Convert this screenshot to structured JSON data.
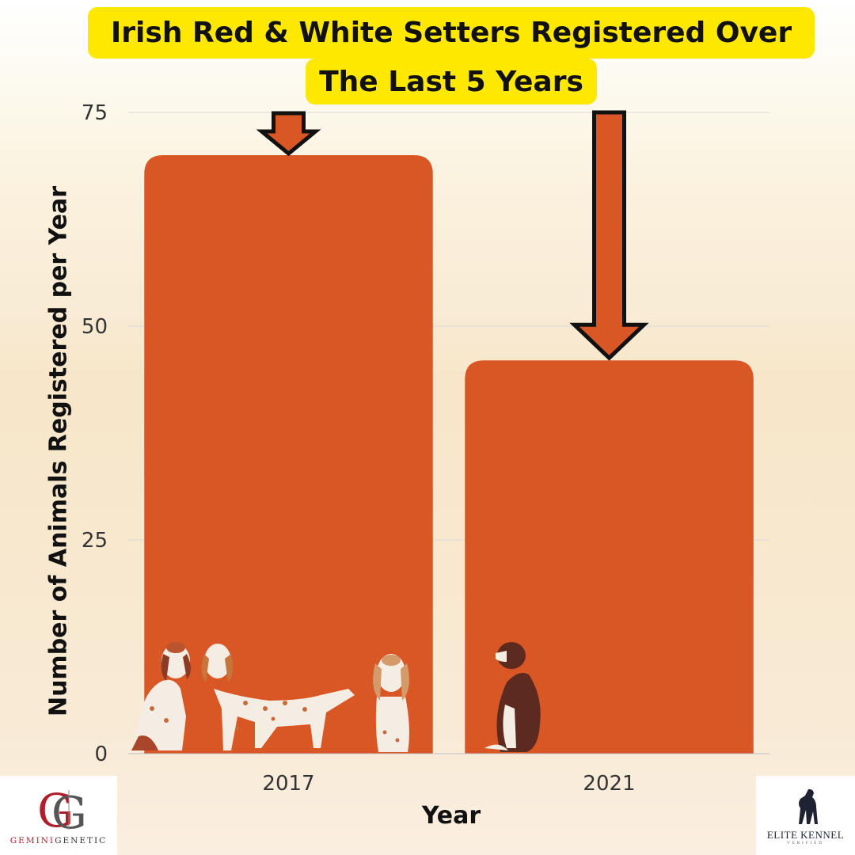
{
  "title_line_1": "Irish Red & White Setters Registered Over",
  "title_line_2": "The Last 5 Years",
  "logos": {
    "left": {
      "monogram": "GG",
      "text_prefix": "GEMINI",
      "text_suffix": "GENETIC"
    },
    "right": {
      "text": "ELITE KENNEL",
      "sub": "VERIFIED"
    }
  },
  "colors": {
    "bar": "#d95725",
    "arrow_fill": "#d95725",
    "arrow_stroke": "#111111",
    "title_highlight": "#ffe800",
    "gridline": "#d8d8d8",
    "logo_red": "#b01d2b",
    "logo_navy": "#1e2233"
  },
  "chart_data": {
    "type": "bar",
    "categories": [
      "2017",
      "2021"
    ],
    "values": [
      70,
      46
    ],
    "xlabel": "Year",
    "ylabel": "Number of Animals Registered per Year",
    "ylim": [
      0,
      75
    ],
    "yticks": [
      0,
      25,
      50,
      75
    ],
    "grid": true,
    "legend": "none",
    "annotations": [
      "down-arrow above 2017 bar",
      "down-arrow above 2021 bar"
    ]
  }
}
